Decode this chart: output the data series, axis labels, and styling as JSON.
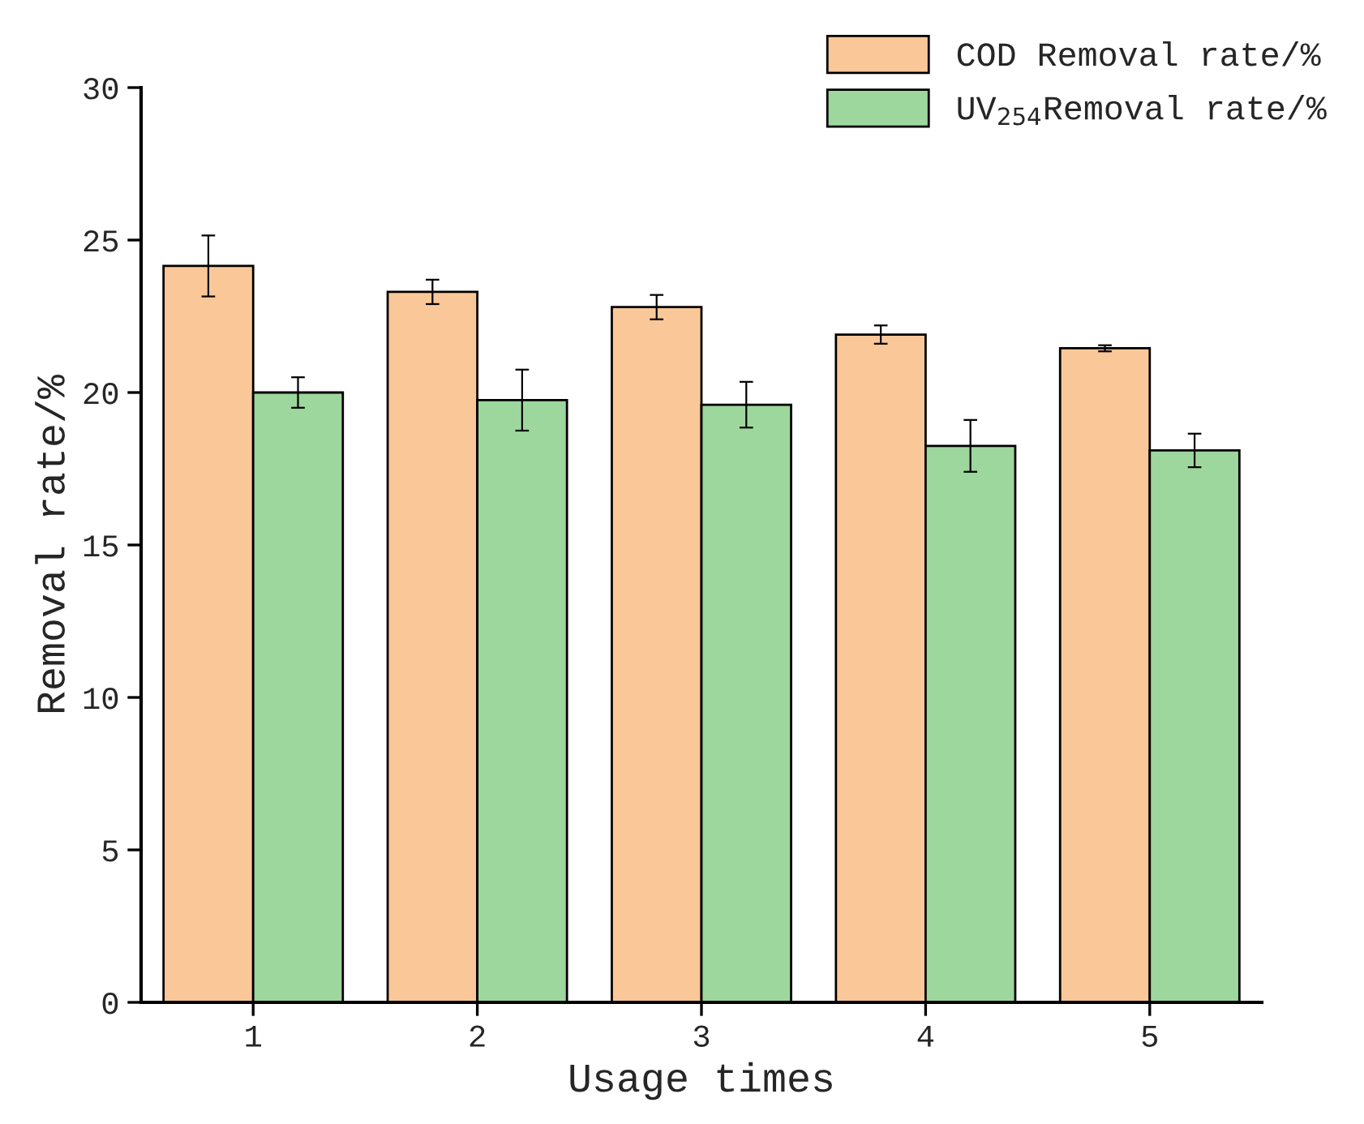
{
  "chart_data": {
    "type": "bar",
    "xlabel": "Usage times",
    "ylabel": "Removal rate/%",
    "categories": [
      "1",
      "2",
      "3",
      "4",
      "5"
    ],
    "series": [
      {
        "name": "COD Removal rate/%",
        "color": "#fac898",
        "values": [
          24.15,
          23.3,
          22.8,
          21.9,
          21.45
        ],
        "errors": [
          1.0,
          0.4,
          0.4,
          0.3,
          0.1
        ]
      },
      {
        "name": "UV$_{254}$Removal rate/%",
        "color": "#9dd79d",
        "values": [
          20.0,
          19.75,
          19.6,
          18.25,
          18.1
        ],
        "errors": [
          0.5,
          1.0,
          0.75,
          0.85,
          0.55
        ]
      }
    ],
    "ylim": [
      0,
      30
    ],
    "yticks": [
      0,
      5,
      10,
      15,
      20,
      25,
      30
    ],
    "grid": false,
    "legend": "top right"
  }
}
